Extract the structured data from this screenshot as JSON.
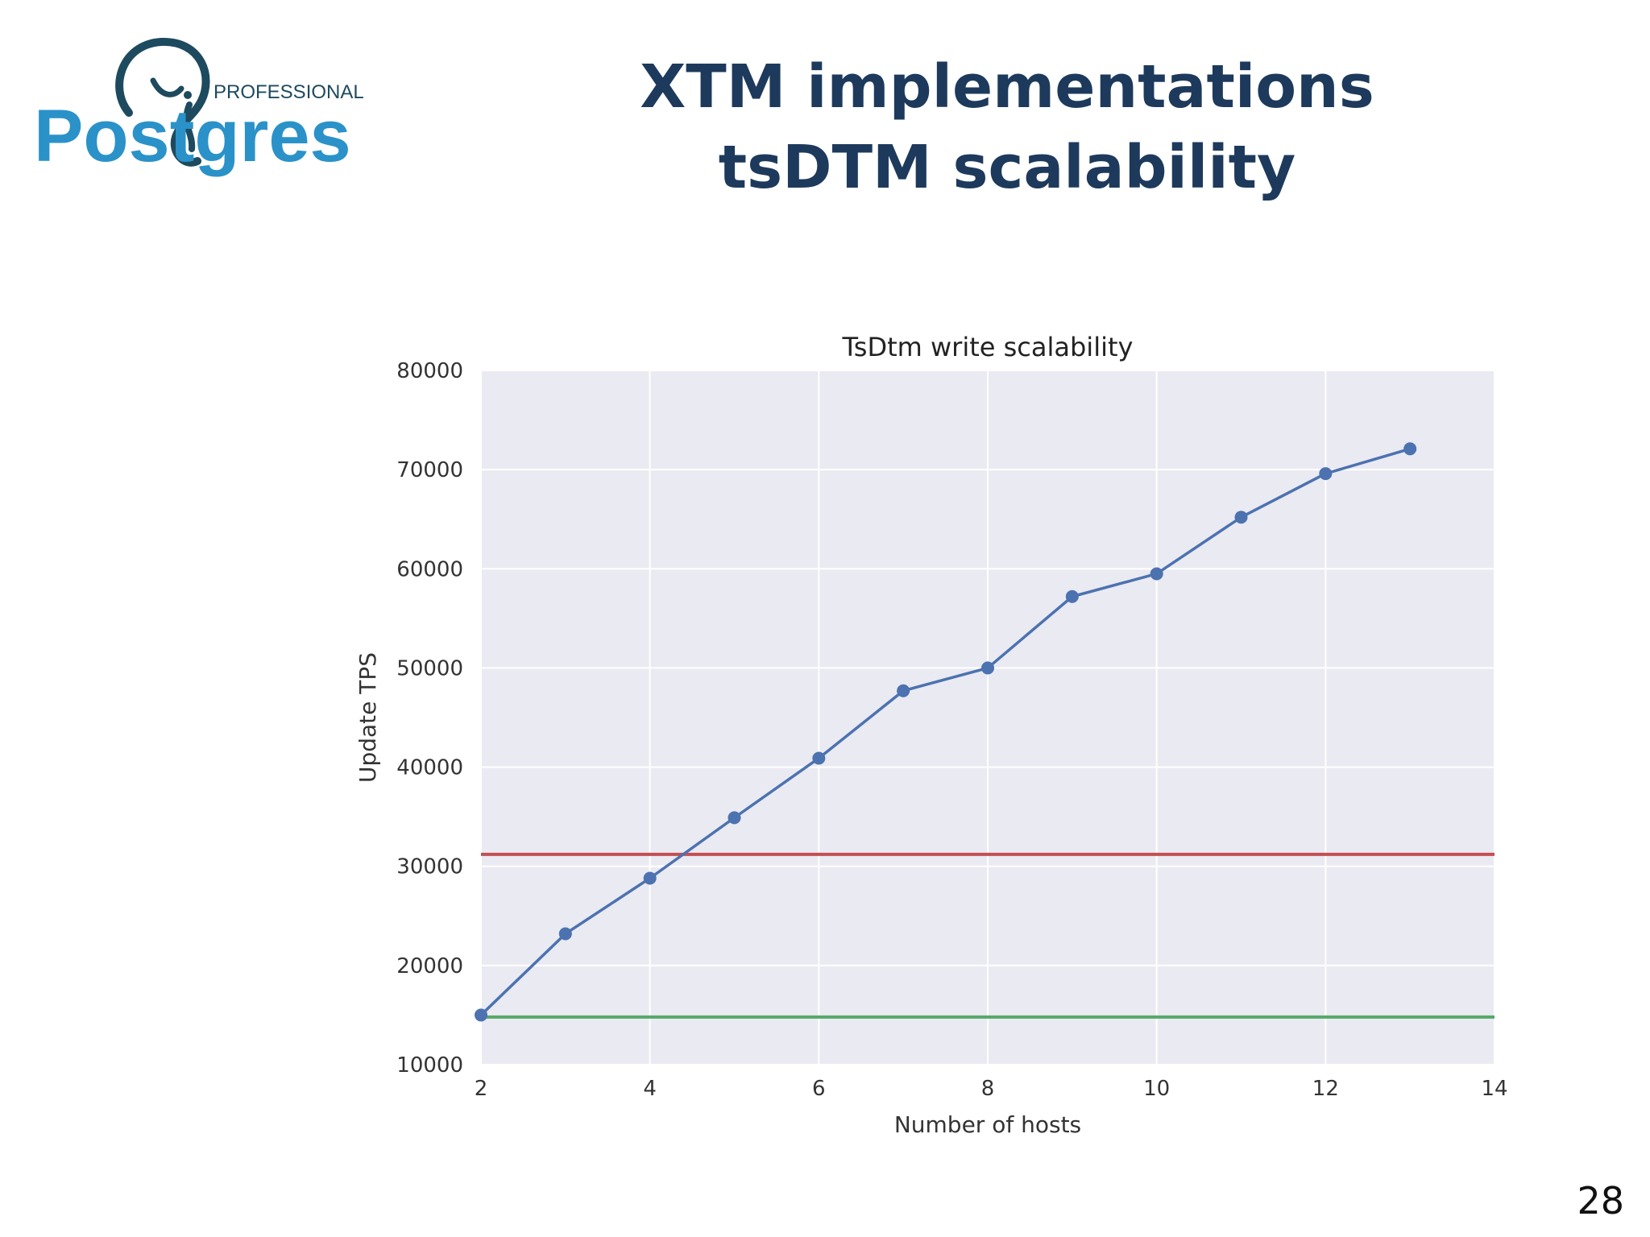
{
  "logo": {
    "text_main": "Postgres",
    "text_sub": "PROFESSIONAL",
    "icon": "elephant-logo-icon",
    "color_dark": "#1e4a5f",
    "color_blue": "#2a92c9"
  },
  "slide": {
    "title_line1": "XTM implementations",
    "title_line2": "tsDTM scalability",
    "page_number": "28"
  },
  "colors": {
    "title": "#1d3a5c",
    "plot_bg": "#eaeaf2",
    "grid": "#ffffff",
    "series": "#4c72b0",
    "ref_red": "#c44e52",
    "ref_green": "#55a868",
    "tick_text": "#333333"
  },
  "chart_data": {
    "type": "line",
    "title": "TsDtm write scalability",
    "xlabel": "Number of hosts",
    "ylabel": "Update TPS",
    "xlim": [
      2,
      14
    ],
    "ylim": [
      10000,
      80000
    ],
    "xticks": [
      "2",
      "4",
      "6",
      "8",
      "10",
      "12",
      "14"
    ],
    "yticks": [
      "10000",
      "20000",
      "30000",
      "40000",
      "50000",
      "60000",
      "70000",
      "80000"
    ],
    "grid": true,
    "legend": "none",
    "series": [
      {
        "x": [
          2,
          3,
          4,
          5,
          6,
          7,
          8,
          9,
          10,
          11,
          12,
          13
        ],
        "values": [
          15000,
          23200,
          28800,
          34900,
          40900,
          47700,
          50000,
          57200,
          59500,
          65200,
          69600,
          72100
        ],
        "marker": "circle"
      }
    ],
    "reference_lines": [
      {
        "y": 31200,
        "color": "red"
      },
      {
        "y": 14800,
        "color": "green"
      }
    ]
  }
}
